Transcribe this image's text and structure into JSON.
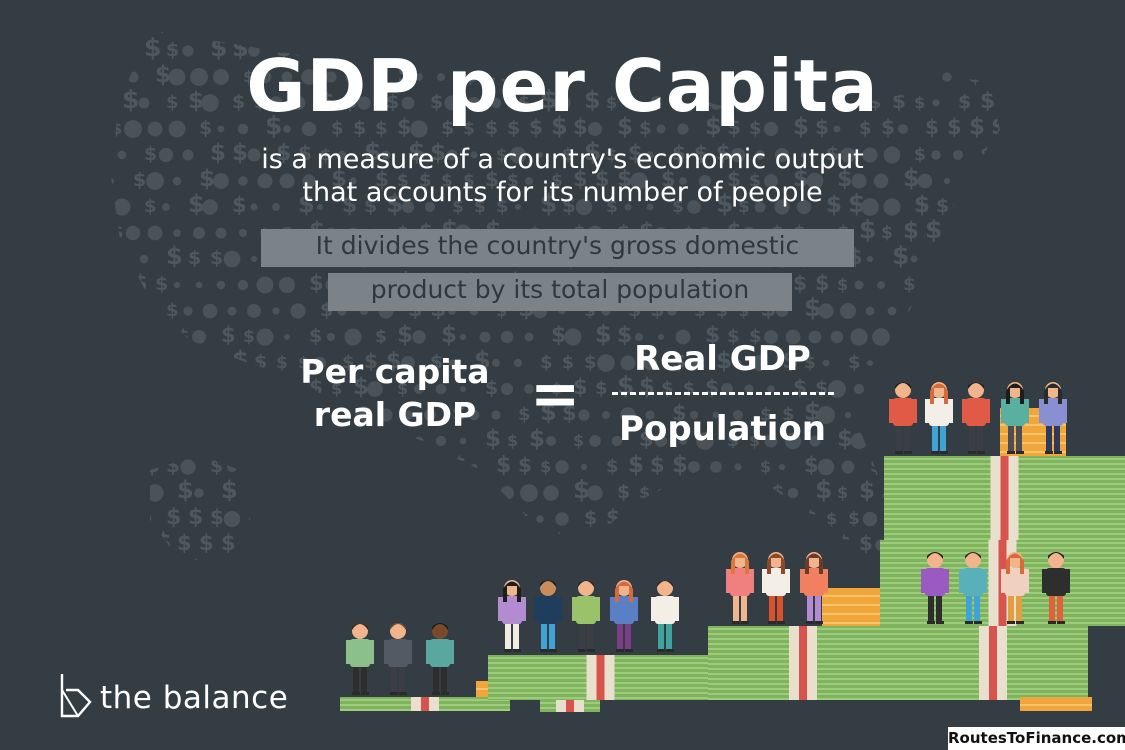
{
  "title": "GDP per Capita",
  "subtitle_line1": "is a measure of a country's economic output",
  "subtitle_line2": "that accounts for its number of people",
  "highlight_line1": "It divides the country's gross domestic",
  "highlight_line2": "product by its total population",
  "formula": {
    "left_line1": "Per capita",
    "left_line2": "real GDP",
    "equals": "=",
    "numerator": "Real GDP",
    "denominator": "Population"
  },
  "brand": "the balance",
  "watermark": "RoutesToFinance.com",
  "colors": {
    "background": "#343d44",
    "money_green": "#8cbf6a",
    "money_band": "#e6ddc9",
    "gold": "#f0a63a",
    "highlight_box": "#7b8288"
  },
  "icons": [
    "dollar-sign-pattern",
    "money-stack",
    "gold-bars",
    "person-figure",
    "balance-logo-icon"
  ]
}
